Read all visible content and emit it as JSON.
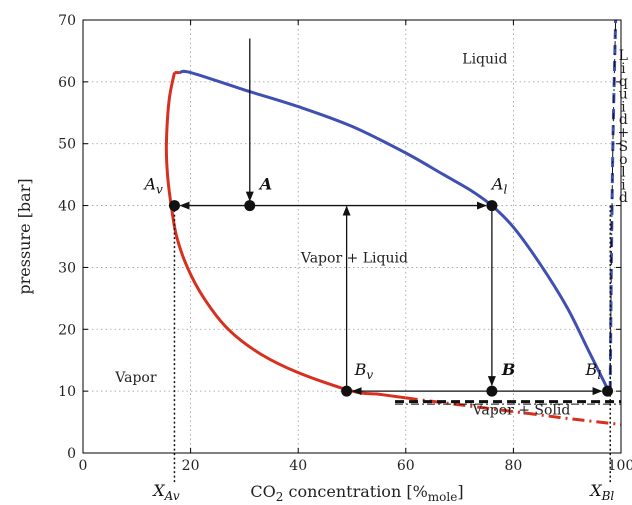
{
  "chart_data": {
    "type": "line",
    "xlabel": "CO2 concentration [%mole]",
    "ylabel": "pressure [bar]",
    "xlim": [
      0,
      100
    ],
    "ylim": [
      0,
      70
    ],
    "xticks": [
      "0",
      "20",
      "40",
      "60",
      "80",
      "100"
    ],
    "yticks": [
      "0",
      "10",
      "20",
      "30",
      "40",
      "50",
      "60",
      "70"
    ],
    "grid": true,
    "colors": {
      "dew": "#d7301f",
      "bubble": "#3f4fb2",
      "solid": "#111111",
      "axis": "#000000"
    },
    "series": [
      {
        "role": "dew",
        "x": [
          17,
          16,
          15.5,
          15.7,
          16.4,
          17.4,
          19.4,
          22.5,
          27,
          33,
          40,
          50,
          55,
          60,
          70,
          80,
          90,
          100
        ],
        "y": [
          61.5,
          57,
          50,
          45,
          40,
          35,
          30,
          25,
          20,
          16,
          13,
          10,
          9.5,
          8.9,
          7.8,
          6.7,
          5.6,
          4.6
        ]
      },
      {
        "role": "bubble",
        "x": [
          18,
          20,
          30,
          40,
          50,
          60,
          67,
          72,
          76,
          80,
          85,
          90,
          94,
          98
        ],
        "y": [
          61.5,
          61.5,
          58.7,
          56,
          52.8,
          48.5,
          45,
          42.5,
          40,
          36.5,
          30.5,
          23.5,
          16.5,
          9.5
        ]
      },
      {
        "role": "solid-boundary",
        "x": [
          98,
          98.2,
          98.5,
          99
        ],
        "y": [
          10,
          30,
          50,
          70
        ]
      },
      {
        "role": "vapor-solid-line",
        "x": [
          58,
          100
        ],
        "y": [
          8.3,
          8.3
        ]
      }
    ],
    "points": [
      {
        "label": "A_v",
        "base": "A",
        "sub": "v",
        "x": 17,
        "y": 40
      },
      {
        "label": "A",
        "base": "A",
        "sub": "",
        "x": 31,
        "y": 40
      },
      {
        "label": "A_l",
        "base": "A",
        "sub": "l",
        "x": 76,
        "y": 40
      },
      {
        "label": "B_v",
        "base": "B",
        "sub": "v",
        "x": 49,
        "y": 10
      },
      {
        "label": "B",
        "base": "B",
        "sub": "",
        "x": 76,
        "y": 10
      },
      {
        "label": "B_l",
        "base": "B",
        "sub": "l",
        "x": 97.5,
        "y": 10
      }
    ],
    "regions": {
      "liquid": "Liquid",
      "vapor": "Vapor",
      "vapor_liquid": "Vapor + Liquid",
      "vapor_solid": "Vapor + Solid",
      "liquid_solid_chars": [
        "L",
        "i",
        "q",
        "u",
        "i",
        "d",
        "+",
        "S",
        "o",
        "l",
        "i",
        "d"
      ]
    },
    "bottom_labels": [
      {
        "base": "X",
        "sub": "Av",
        "x": 17
      },
      {
        "base": "X",
        "sub": "Bl",
        "x": 98
      }
    ]
  }
}
